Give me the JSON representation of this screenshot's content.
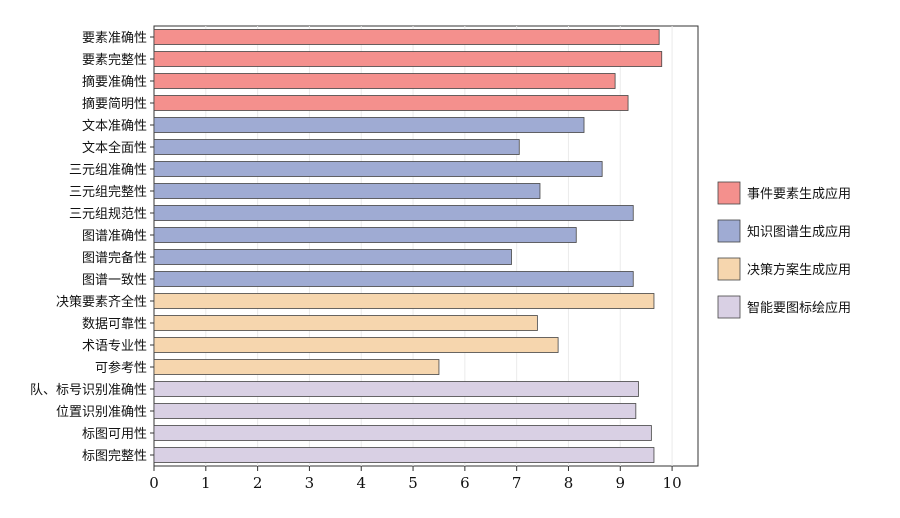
{
  "chart_data": {
    "type": "bar",
    "orientation": "horizontal",
    "categories": [
      "要素准确性",
      "要素完整性",
      "摘要准确性",
      "摘要简明性",
      "文本准确性",
      "文本全面性",
      "三元组准确性",
      "三元组完整性",
      "三元组规范性",
      "图谱准确性",
      "图谱完备性",
      "图谱一致性",
      "决策要素齐全性",
      "数据可靠性",
      "术语专业性",
      "可参考性",
      "队、标号识别准确性",
      "位置识别准确性",
      "标图可用性",
      "标图完整性"
    ],
    "values": [
      9.75,
      9.8,
      8.9,
      9.15,
      8.3,
      7.05,
      8.65,
      7.45,
      9.25,
      8.15,
      6.9,
      9.25,
      9.65,
      7.4,
      7.8,
      5.5,
      9.35,
      9.3,
      9.6,
      9.65
    ],
    "groups": [
      0,
      0,
      0,
      0,
      1,
      1,
      1,
      1,
      1,
      1,
      1,
      1,
      2,
      2,
      2,
      2,
      3,
      3,
      3,
      3
    ],
    "series": [
      {
        "name": "事件要素生成应用",
        "color": "#f4908d"
      },
      {
        "name": "知识图谱生成应用",
        "color": "#9fabd3"
      },
      {
        "name": "决策方案生成应用",
        "color": "#f6d6ae"
      },
      {
        "name": "智能要图标绘应用",
        "color": "#d9d0e4"
      }
    ],
    "xlim": [
      0,
      10.5
    ],
    "xticks": [
      "0",
      "1",
      "2",
      "3",
      "4",
      "5",
      "6",
      "7",
      "8",
      "9",
      "10"
    ],
    "title": "",
    "xlabel": "",
    "ylabel": "",
    "grid": "vertical",
    "legend_position": "right"
  }
}
